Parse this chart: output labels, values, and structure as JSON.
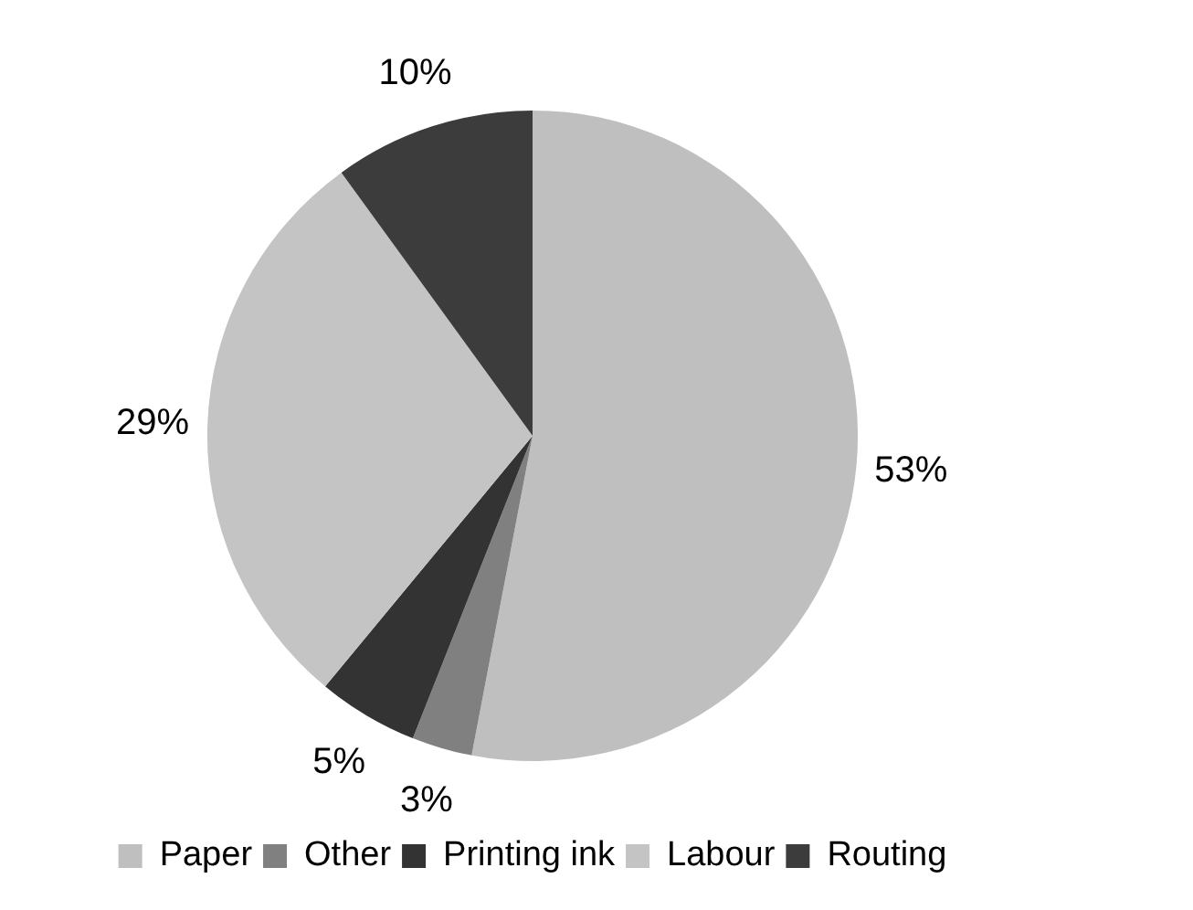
{
  "chart_data": {
    "type": "pie",
    "categories": [
      "Paper",
      "Other",
      "Printing ink",
      "Labour",
      "Routing"
    ],
    "values": [
      53,
      3,
      5,
      29,
      10
    ],
    "colors": [
      "#bfbfbf",
      "#808080",
      "#333333",
      "#c4c4c4",
      "#3c3c3c"
    ],
    "value_labels": [
      "53%",
      "3%",
      "5%",
      "29%",
      "10%"
    ],
    "legend": "bottom"
  }
}
